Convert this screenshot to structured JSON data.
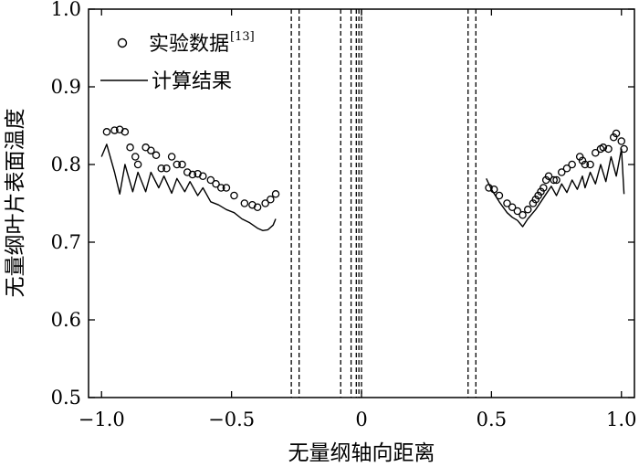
{
  "chart_data": {
    "type": "scatter",
    "xlabel": "无量纲轴向距离",
    "ylabel": "无量纲叶片表面温度",
    "xlim": [
      -1.05,
      1.05
    ],
    "ylim": [
      0.5,
      1.0
    ],
    "x_ticks": [
      "−1.0",
      "−0.5",
      "0",
      "0.5",
      "1.0"
    ],
    "y_ticks": [
      "0.5",
      "0.6",
      "0.7",
      "0.8",
      "0.9",
      "1.0"
    ],
    "grid": false,
    "legend_position": "top-left",
    "legend": {
      "experiment_label": "实验数据",
      "experiment_ref": "[13]",
      "calc_label": "计算结果"
    },
    "vertical_dashed_lines": [
      -0.27,
      -0.24,
      -0.08,
      -0.04,
      -0.02,
      -0.01,
      0.0,
      0.41,
      0.44
    ],
    "series": [
      {
        "name": "实验数据",
        "marker": "circle-open",
        "x": [
          -0.98,
          -0.95,
          -0.93,
          -0.91,
          -0.89,
          -0.87,
          -0.86,
          -0.83,
          -0.81,
          -0.79,
          -0.77,
          -0.75,
          -0.73,
          -0.71,
          -0.69,
          -0.67,
          -0.65,
          -0.63,
          -0.61,
          -0.58,
          -0.56,
          -0.54,
          -0.52,
          -0.49,
          -0.45,
          -0.42,
          -0.4,
          -0.37,
          -0.35,
          -0.33,
          0.49,
          0.51,
          0.53,
          0.56,
          0.58,
          0.6,
          0.62,
          0.64,
          0.66,
          0.67,
          0.68,
          0.69,
          0.7,
          0.71,
          0.72,
          0.74,
          0.75,
          0.77,
          0.79,
          0.81,
          0.84,
          0.85,
          0.86,
          0.88,
          0.9,
          0.92,
          0.93,
          0.95,
          0.97,
          0.98,
          1.0,
          1.01
        ],
        "y": [
          0.842,
          0.844,
          0.845,
          0.842,
          0.822,
          0.81,
          0.8,
          0.822,
          0.818,
          0.812,
          0.795,
          0.795,
          0.81,
          0.8,
          0.8,
          0.79,
          0.787,
          0.788,
          0.785,
          0.78,
          0.775,
          0.77,
          0.77,
          0.76,
          0.75,
          0.748,
          0.745,
          0.75,
          0.755,
          0.762,
          0.77,
          0.768,
          0.76,
          0.75,
          0.745,
          0.74,
          0.735,
          0.742,
          0.75,
          0.755,
          0.76,
          0.765,
          0.77,
          0.78,
          0.785,
          0.78,
          0.78,
          0.79,
          0.795,
          0.8,
          0.81,
          0.805,
          0.8,
          0.8,
          0.815,
          0.82,
          0.822,
          0.82,
          0.835,
          0.84,
          0.83,
          0.82
        ]
      },
      {
        "name": "计算结果",
        "marker": "line",
        "x": [
          -1.0,
          -0.98,
          -0.95,
          -0.93,
          -0.91,
          -0.88,
          -0.86,
          -0.83,
          -0.81,
          -0.78,
          -0.76,
          -0.73,
          -0.71,
          -0.68,
          -0.66,
          -0.63,
          -0.61,
          -0.58,
          -0.55,
          -0.52,
          -0.49,
          -0.46,
          -0.43,
          -0.4,
          -0.38,
          -0.36,
          -0.34,
          -0.33,
          0.48,
          0.5,
          0.53,
          0.56,
          0.58,
          0.6,
          0.62,
          0.64,
          0.67,
          0.69,
          0.71,
          0.73,
          0.75,
          0.77,
          0.79,
          0.81,
          0.83,
          0.85,
          0.86,
          0.88,
          0.9,
          0.92,
          0.94,
          0.96,
          0.98,
          1.0,
          1.01
        ],
        "y": [
          0.81,
          0.826,
          0.79,
          0.762,
          0.8,
          0.765,
          0.79,
          0.765,
          0.79,
          0.77,
          0.785,
          0.763,
          0.782,
          0.765,
          0.778,
          0.76,
          0.77,
          0.752,
          0.748,
          0.742,
          0.738,
          0.73,
          0.725,
          0.718,
          0.715,
          0.716,
          0.722,
          0.73,
          0.782,
          0.768,
          0.752,
          0.738,
          0.732,
          0.728,
          0.72,
          0.73,
          0.742,
          0.752,
          0.762,
          0.772,
          0.76,
          0.775,
          0.764,
          0.78,
          0.768,
          0.785,
          0.77,
          0.79,
          0.775,
          0.8,
          0.778,
          0.81,
          0.785,
          0.82,
          0.762
        ]
      }
    ]
  }
}
